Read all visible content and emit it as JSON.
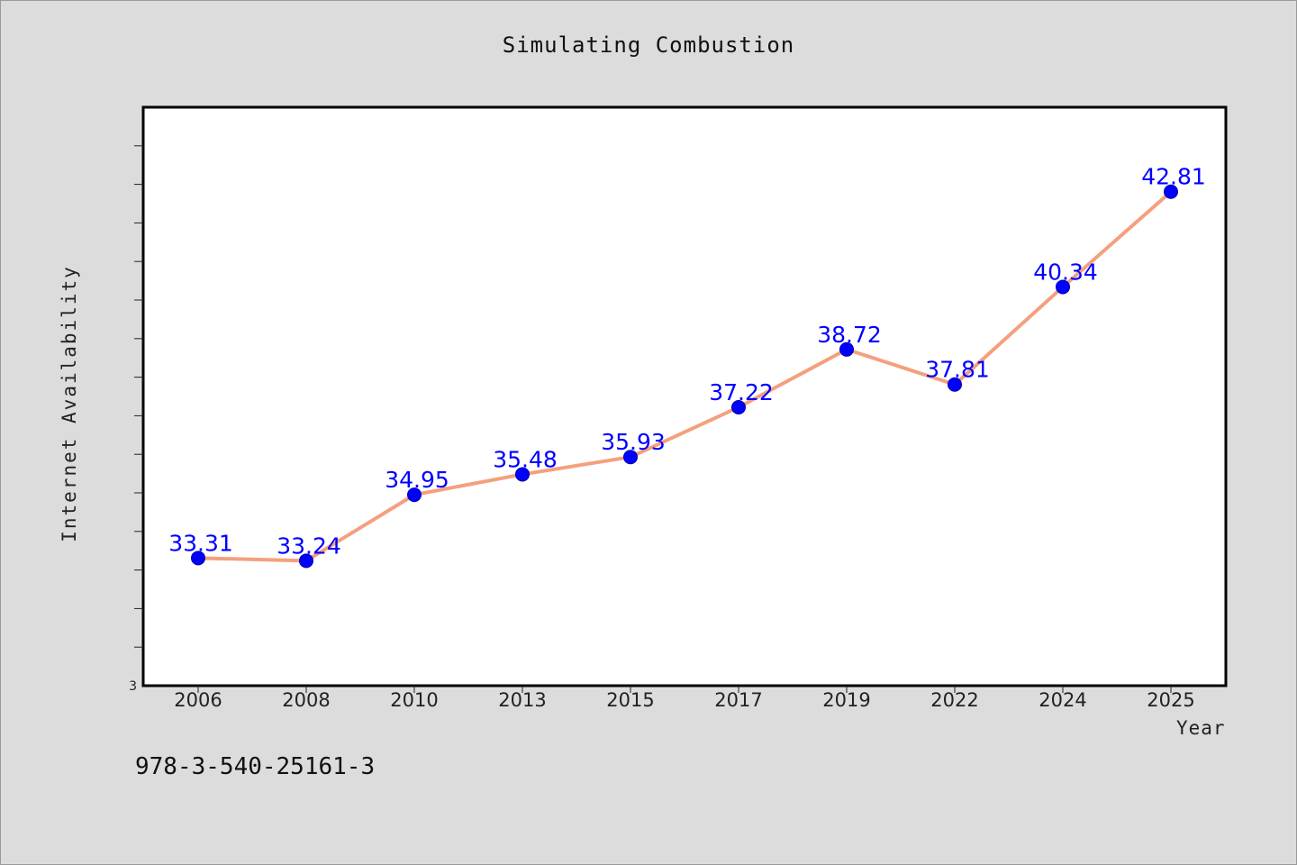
{
  "chart_data": {
    "type": "line",
    "title": "Simulating Combustion",
    "xlabel": "Year",
    "ylabel": "Internet Availability",
    "categories": [
      "2006",
      "2008",
      "2010",
      "2013",
      "2015",
      "2017",
      "2019",
      "2022",
      "2024",
      "2025"
    ],
    "series": [
      {
        "values": [
          33.31,
          33.24,
          34.95,
          35.48,
          35.93,
          37.22,
          38.72,
          37.81,
          40.34,
          42.81
        ],
        "data_labels": [
          "33.31",
          "33.24",
          "34.95",
          "35.48",
          "35.93",
          "37.22",
          "38.72",
          "37.81",
          "40.34",
          "42.81"
        ],
        "line_color": "#f4a07e",
        "marker_color": "#0000ff"
      }
    ],
    "ylim": [
      30,
      45
    ],
    "y_tick_labels": [
      "3"
    ],
    "y_minor_tick_count": 14,
    "grid": false,
    "legend": "none"
  },
  "footnote": "978-3-540-25161-3"
}
